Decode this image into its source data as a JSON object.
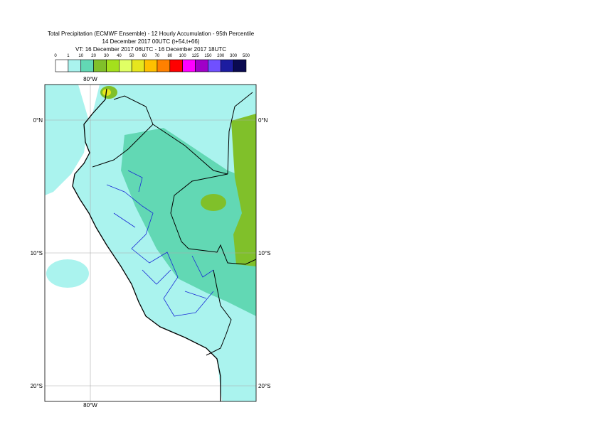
{
  "header": {
    "title": "Total Precipitation (ECMWF Ensemble) - 12 Hourly Accumulation - 95th Percentile",
    "run": "14 December 2017 00UTC (t+54,t+66)",
    "valid": "VT: 16 December 2017 06UTC - 16 December 2017 18UTC"
  },
  "colorbar": {
    "ticks": [
      0,
      1,
      10,
      20,
      30,
      40,
      50,
      60,
      70,
      80,
      100,
      125,
      150,
      200,
      300,
      500
    ],
    "colors": [
      "#ffffff",
      "#aaf3ee",
      "#62d8b4",
      "#80c02a",
      "#a4e01c",
      "#e0ff64",
      "#e6e61e",
      "#ffc000",
      "#ff8000",
      "#ff0000",
      "#ff00ff",
      "#a000c8",
      "#7050ff",
      "#1c1ca0",
      "#0a0a50"
    ]
  },
  "map": {
    "lon_labels": [
      "80°W"
    ],
    "lat_labels": [
      "0°N",
      "10°S",
      "20°S"
    ]
  }
}
